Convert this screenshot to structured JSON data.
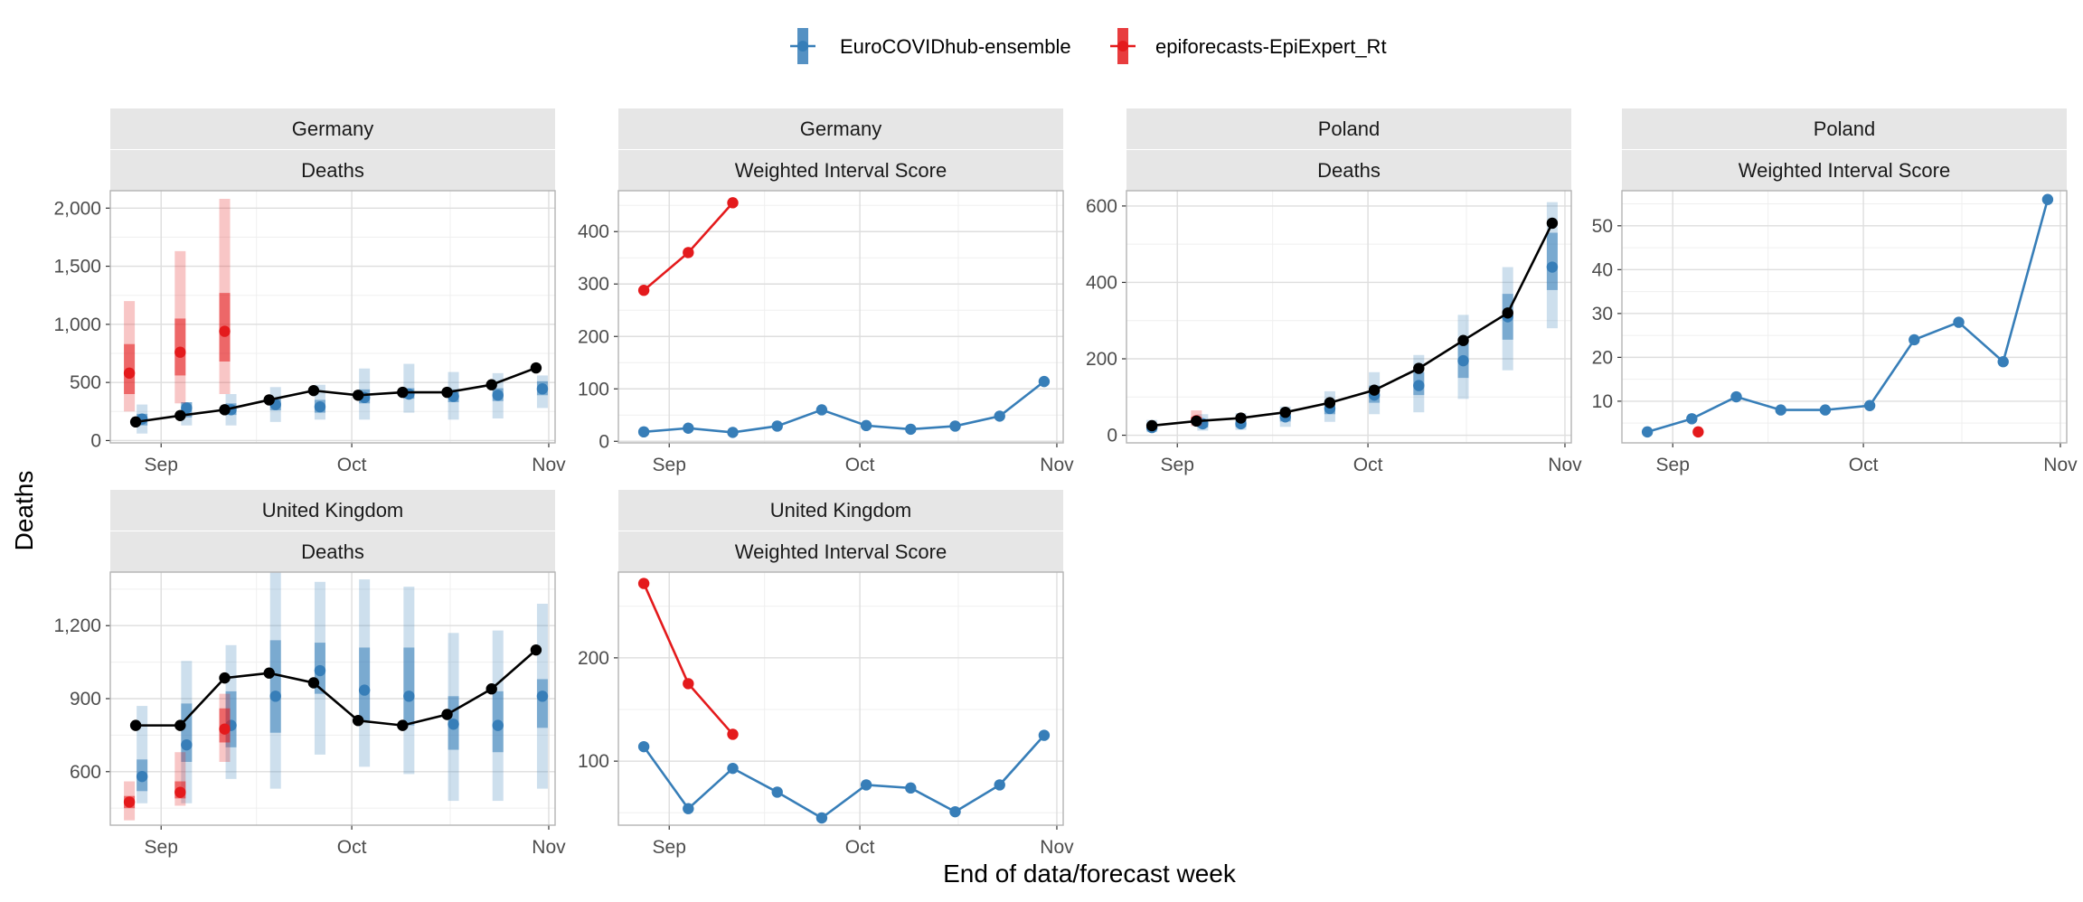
{
  "chart_data": {
    "type": "line",
    "ylabel": "Deaths",
    "xlabel": "End of data/forecast week",
    "legend": {
      "placement": "top",
      "entries": [
        {
          "name": "EuroCOVIDhub-ensemble",
          "color": "#377eb8"
        },
        {
          "name": "epiforecasts-EpiExpert_Rt",
          "color": "#e41a1c"
        }
      ]
    },
    "colors": {
      "ensemble": "#377eb8",
      "epiexpert": "#e41a1c",
      "observed": "#000000"
    },
    "x_domain": [
      "2021-08-24",
      "2021-11-02"
    ],
    "x_ticks": [
      {
        "date": "2021-09-01",
        "label": "Sep"
      },
      {
        "date": "2021-10-01",
        "label": "Oct"
      },
      {
        "date": "2021-11-01",
        "label": "Nov"
      }
    ],
    "panels": [
      {
        "id": "de_deaths",
        "kind": "deaths",
        "strip_top": "Germany",
        "strip_bottom": "Deaths",
        "ylim": [
          -20,
          2150
        ],
        "yticks": [
          {
            "v": 0,
            "label": "0"
          },
          {
            "v": 500,
            "label": "500"
          },
          {
            "v": 1000,
            "label": "1,000"
          },
          {
            "v": 1500,
            "label": "1,500"
          },
          {
            "v": 2000,
            "label": "2,000"
          }
        ],
        "observed": {
          "x": [
            "2021-08-28",
            "2021-09-04",
            "2021-09-11",
            "2021-09-18",
            "2021-09-25",
            "2021-10-02",
            "2021-10-09",
            "2021-10-16",
            "2021-10-23",
            "2021-10-30"
          ],
          "y": [
            160,
            215,
            265,
            350,
            430,
            390,
            415,
            415,
            480,
            625
          ]
        },
        "ensemble": {
          "x": [
            "2021-08-29",
            "2021-09-05",
            "2021-09-12",
            "2021-09-19",
            "2021-09-26",
            "2021-10-03",
            "2021-10-10",
            "2021-10-17",
            "2021-10-24",
            "2021-10-31"
          ],
          "median": [
            185,
            280,
            265,
            310,
            290,
            370,
            400,
            380,
            390,
            445
          ],
          "q25": [
            130,
            200,
            220,
            260,
            240,
            320,
            360,
            330,
            340,
            390
          ],
          "q75": [
            230,
            330,
            320,
            360,
            350,
            440,
            450,
            440,
            450,
            510
          ],
          "q05": [
            60,
            130,
            130,
            160,
            180,
            180,
            240,
            180,
            190,
            280
          ],
          "q95": [
            310,
            330,
            400,
            460,
            480,
            620,
            660,
            590,
            580,
            560
          ]
        },
        "epiexpert": {
          "x": [
            "2021-08-27",
            "2021-09-04",
            "2021-09-11"
          ],
          "median": [
            580,
            760,
            940
          ],
          "q25": [
            400,
            560,
            680
          ],
          "q75": [
            830,
            1050,
            1270
          ],
          "q05": [
            250,
            320,
            400
          ],
          "q95": [
            1200,
            1630,
            2080
          ]
        }
      },
      {
        "id": "de_wis",
        "kind": "wis",
        "strip_top": "Germany",
        "strip_bottom": "Weighted Interval Score",
        "ylim": [
          -3,
          478
        ],
        "yticks": [
          {
            "v": 0,
            "label": "0"
          },
          {
            "v": 100,
            "label": "100"
          },
          {
            "v": 200,
            "label": "200"
          },
          {
            "v": 300,
            "label": "300"
          },
          {
            "v": 400,
            "label": "400"
          }
        ],
        "ensemble": {
          "x": [
            "2021-08-28",
            "2021-09-04",
            "2021-09-11",
            "2021-09-18",
            "2021-09-25",
            "2021-10-02",
            "2021-10-09",
            "2021-10-16",
            "2021-10-23",
            "2021-10-30"
          ],
          "y": [
            18,
            25,
            17,
            29,
            60,
            30,
            23,
            29,
            48,
            114
          ]
        },
        "epiexpert": {
          "x": [
            "2021-08-28",
            "2021-09-04",
            "2021-09-11"
          ],
          "y": [
            288,
            360,
            455
          ]
        }
      },
      {
        "id": "pl_deaths",
        "kind": "deaths",
        "strip_top": "Poland",
        "strip_bottom": "Deaths",
        "ylim": [
          -20,
          640
        ],
        "yticks": [
          {
            "v": 0,
            "label": "0"
          },
          {
            "v": 200,
            "label": "200"
          },
          {
            "v": 400,
            "label": "400"
          },
          {
            "v": 600,
            "label": "600"
          }
        ],
        "observed": {
          "x": [
            "2021-08-28",
            "2021-09-04",
            "2021-09-11",
            "2021-09-18",
            "2021-09-25",
            "2021-10-02",
            "2021-10-09",
            "2021-10-16",
            "2021-10-23",
            "2021-10-30"
          ],
          "y": [
            25,
            37,
            45,
            60,
            85,
            118,
            175,
            248,
            320,
            555
          ]
        },
        "ensemble": {
          "x": [
            "2021-08-28",
            "2021-09-05",
            "2021-09-11",
            "2021-09-18",
            "2021-09-25",
            "2021-10-02",
            "2021-10-09",
            "2021-10-16",
            "2021-10-23",
            "2021-10-30"
          ],
          "median": [
            20,
            30,
            30,
            48,
            70,
            105,
            130,
            195,
            310,
            440
          ],
          "q25": [
            14,
            20,
            22,
            36,
            55,
            85,
            105,
            150,
            250,
            380
          ],
          "q75": [
            30,
            42,
            42,
            60,
            92,
            130,
            165,
            250,
            370,
            530
          ],
          "q05": [
            8,
            12,
            14,
            22,
            35,
            55,
            60,
            95,
            170,
            280
          ],
          "q95": [
            40,
            55,
            58,
            75,
            115,
            165,
            210,
            315,
            440,
            610
          ]
        },
        "epiexpert": {
          "x": [
            "2021-09-04"
          ],
          "median": [
            38
          ],
          "q25": [
            32
          ],
          "q75": [
            48
          ],
          "q05": [
            24
          ],
          "q95": [
            65
          ]
        }
      },
      {
        "id": "pl_wis",
        "kind": "wis",
        "strip_top": "Poland",
        "strip_bottom": "Weighted Interval Score",
        "ylim": [
          0.5,
          58
        ],
        "yticks": [
          {
            "v": 10,
            "label": "10"
          },
          {
            "v": 20,
            "label": "20"
          },
          {
            "v": 30,
            "label": "30"
          },
          {
            "v": 40,
            "label": "40"
          },
          {
            "v": 50,
            "label": "50"
          }
        ],
        "ensemble": {
          "x": [
            "2021-08-28",
            "2021-09-04",
            "2021-09-11",
            "2021-09-18",
            "2021-09-25",
            "2021-10-02",
            "2021-10-09",
            "2021-10-16",
            "2021-10-23",
            "2021-10-30"
          ],
          "y": [
            3,
            6,
            11,
            8,
            8,
            9,
            24,
            28,
            19,
            56
          ]
        },
        "epiexpert": {
          "x": [
            "2021-09-05"
          ],
          "y": [
            3
          ]
        }
      },
      {
        "id": "uk_deaths",
        "kind": "deaths",
        "strip_top": "United Kingdom",
        "strip_bottom": "Deaths",
        "ylim": [
          380,
          1420
        ],
        "yticks": [
          {
            "v": 600,
            "label": "600"
          },
          {
            "v": 900,
            "label": "900"
          },
          {
            "v": 1200,
            "label": "1,200"
          }
        ],
        "observed": {
          "x": [
            "2021-08-28",
            "2021-09-04",
            "2021-09-11",
            "2021-09-18",
            "2021-09-25",
            "2021-10-02",
            "2021-10-09",
            "2021-10-16",
            "2021-10-23",
            "2021-10-30"
          ],
          "y": [
            790,
            790,
            985,
            1005,
            965,
            810,
            790,
            835,
            940,
            1100
          ]
        },
        "ensemble": {
          "x": [
            "2021-08-29",
            "2021-09-05",
            "2021-09-12",
            "2021-09-19",
            "2021-09-26",
            "2021-10-03",
            "2021-10-10",
            "2021-10-17",
            "2021-10-24",
            "2021-10-31"
          ],
          "median": [
            580,
            710,
            790,
            910,
            1015,
            935,
            910,
            795,
            790,
            910
          ],
          "q25": [
            520,
            640,
            700,
            760,
            920,
            810,
            790,
            690,
            680,
            780
          ],
          "q75": [
            650,
            880,
            930,
            1140,
            1130,
            1110,
            1110,
            910,
            930,
            980
          ],
          "q05": [
            470,
            470,
            570,
            530,
            670,
            620,
            590,
            480,
            480,
            530
          ],
          "q95": [
            870,
            1055,
            1120,
            1420,
            1380,
            1390,
            1360,
            1170,
            1180,
            1290
          ]
        },
        "epiexpert": {
          "x": [
            "2021-08-27",
            "2021-09-04",
            "2021-09-11"
          ],
          "median": [
            475,
            515,
            775
          ],
          "q25": [
            450,
            490,
            720
          ],
          "q75": [
            500,
            560,
            860
          ],
          "q05": [
            400,
            460,
            640
          ],
          "q95": [
            560,
            680,
            920
          ]
        }
      },
      {
        "id": "uk_wis",
        "kind": "wis",
        "strip_top": "United Kingdom",
        "strip_bottom": "Weighted Interval Score",
        "ylim": [
          38,
          283
        ],
        "yticks": [
          {
            "v": 100,
            "label": "100"
          },
          {
            "v": 200,
            "label": "200"
          }
        ],
        "ensemble": {
          "x": [
            "2021-08-28",
            "2021-09-04",
            "2021-09-11",
            "2021-09-18",
            "2021-09-25",
            "2021-10-02",
            "2021-10-09",
            "2021-10-16",
            "2021-10-23",
            "2021-10-30"
          ],
          "y": [
            114,
            54,
            93,
            70,
            45,
            77,
            74,
            51,
            77,
            125
          ]
        },
        "epiexpert": {
          "x": [
            "2021-08-28",
            "2021-09-04",
            "2021-09-11"
          ],
          "y": [
            272,
            175,
            126
          ]
        }
      }
    ]
  }
}
